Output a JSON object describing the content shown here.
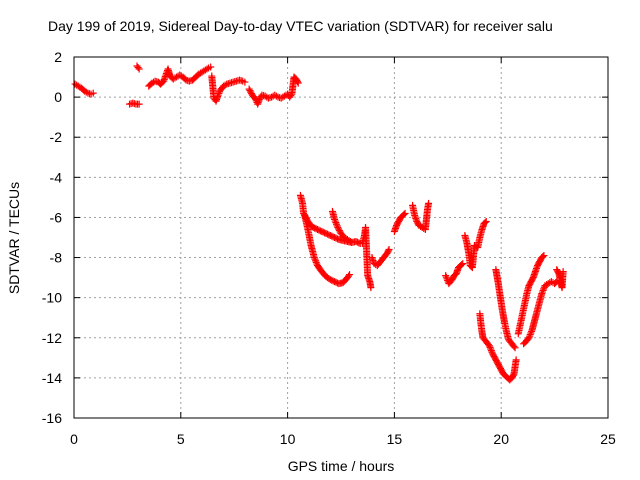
{
  "chart_data": {
    "type": "scatter",
    "title": "Day 199 of 2019, Sidereal Day-to-day VTEC variation (SDTVAR) for receiver salu",
    "xlabel": "GPS time / hours",
    "ylabel": "SDTVAR / TECUs",
    "xlim": [
      0,
      25
    ],
    "ylim": [
      -16,
      2
    ],
    "xticks": [
      "0",
      "5",
      "10",
      "15",
      "20",
      "25"
    ],
    "yticks": [
      "2",
      "0",
      "-2",
      "-4",
      "-6",
      "-8",
      "-10",
      "-12",
      "-14",
      "-16"
    ],
    "grid": true,
    "marker": "+",
    "color": "#ff0000",
    "segments": [
      [
        [
          0.05,
          0.65
        ],
        [
          0.2,
          0.55
        ],
        [
          0.35,
          0.45
        ],
        [
          0.5,
          0.3
        ],
        [
          0.65,
          0.2
        ],
        [
          0.8,
          0.15
        ],
        [
          0.9,
          0.2
        ]
      ],
      [
        [
          2.6,
          -0.35
        ],
        [
          2.75,
          -0.3
        ],
        [
          2.9,
          -0.35
        ],
        [
          3.05,
          -0.35
        ]
      ],
      [
        [
          2.95,
          1.55
        ],
        [
          3.05,
          1.4
        ]
      ],
      [
        [
          3.5,
          0.55
        ],
        [
          3.65,
          0.7
        ],
        [
          3.8,
          0.8
        ],
        [
          3.95,
          0.75
        ],
        [
          4.05,
          0.65
        ],
        [
          4.2,
          0.8
        ],
        [
          4.3,
          1.1
        ],
        [
          4.4,
          1.4
        ],
        [
          4.5,
          1.05
        ],
        [
          4.65,
          0.9
        ],
        [
          4.8,
          1.0
        ],
        [
          4.95,
          1.1
        ],
        [
          5.1,
          1.0
        ],
        [
          5.25,
          0.85
        ],
        [
          5.4,
          0.8
        ],
        [
          5.55,
          0.85
        ],
        [
          5.7,
          1.0
        ],
        [
          5.85,
          1.15
        ],
        [
          6.0,
          1.25
        ],
        [
          6.15,
          1.35
        ],
        [
          6.3,
          1.45
        ],
        [
          6.4,
          1.5
        ]
      ],
      [
        [
          6.45,
          1.05
        ],
        [
          6.55,
          -0.05
        ],
        [
          6.65,
          -0.2
        ],
        [
          6.75,
          0.1
        ],
        [
          6.85,
          0.35
        ],
        [
          7.0,
          0.55
        ],
        [
          7.15,
          0.65
        ],
        [
          7.3,
          0.7
        ],
        [
          7.45,
          0.75
        ],
        [
          7.6,
          0.8
        ],
        [
          7.75,
          0.85
        ],
        [
          7.9,
          0.8
        ],
        [
          8.0,
          0.75
        ]
      ],
      [
        [
          8.2,
          0.4
        ],
        [
          8.35,
          0.1
        ],
        [
          8.5,
          -0.1
        ],
        [
          8.6,
          -0.35
        ],
        [
          8.7,
          -0.05
        ],
        [
          8.8,
          0.1
        ],
        [
          8.95,
          0.05
        ],
        [
          9.1,
          -0.05
        ],
        [
          9.25,
          0.0
        ],
        [
          9.4,
          0.1
        ],
        [
          9.55,
          0.0
        ],
        [
          9.7,
          -0.05
        ],
        [
          9.85,
          0.05
        ],
        [
          10.0,
          0.15
        ],
        [
          10.1,
          0.0
        ],
        [
          10.2,
          0.15
        ],
        [
          10.3,
          1.0
        ],
        [
          10.4,
          0.9
        ],
        [
          10.5,
          0.7
        ]
      ],
      [
        [
          10.6,
          -4.9
        ],
        [
          10.7,
          -5.3
        ],
        [
          10.75,
          -5.8
        ],
        [
          10.85,
          -6.0
        ],
        [
          10.95,
          -6.2
        ],
        [
          11.05,
          -6.35
        ],
        [
          11.2,
          -6.5
        ],
        [
          11.4,
          -6.6
        ],
        [
          11.6,
          -6.7
        ],
        [
          11.8,
          -6.8
        ],
        [
          12.0,
          -6.9
        ],
        [
          12.2,
          -7.0
        ],
        [
          12.4,
          -7.1
        ],
        [
          12.6,
          -7.15
        ],
        [
          12.8,
          -7.2
        ],
        [
          13.0,
          -7.25
        ],
        [
          13.2,
          -7.2
        ],
        [
          13.4,
          -7.3
        ]
      ],
      [
        [
          10.8,
          -5.9
        ],
        [
          10.95,
          -6.6
        ],
        [
          11.1,
          -7.4
        ],
        [
          11.25,
          -8.0
        ],
        [
          11.4,
          -8.4
        ],
        [
          11.6,
          -8.7
        ],
        [
          11.8,
          -8.95
        ],
        [
          12.0,
          -9.1
        ],
        [
          12.2,
          -9.2
        ],
        [
          12.4,
          -9.3
        ],
        [
          12.6,
          -9.25
        ],
        [
          12.8,
          -9.0
        ],
        [
          12.9,
          -8.85
        ]
      ],
      [
        [
          12.1,
          -5.7
        ],
        [
          12.2,
          -6.1
        ],
        [
          12.35,
          -6.5
        ],
        [
          12.5,
          -6.8
        ],
        [
          12.65,
          -7.0
        ],
        [
          12.8,
          -7.1
        ],
        [
          12.95,
          -7.2
        ]
      ],
      [
        [
          13.5,
          -7.3
        ],
        [
          13.6,
          -6.9
        ],
        [
          13.65,
          -6.5
        ],
        [
          13.75,
          -8.9
        ],
        [
          13.85,
          -9.2
        ],
        [
          13.9,
          -9.5
        ]
      ],
      [
        [
          13.95,
          -8.0
        ],
        [
          14.05,
          -8.3
        ],
        [
          14.2,
          -8.4
        ],
        [
          14.35,
          -8.2
        ],
        [
          14.5,
          -8.0
        ],
        [
          14.65,
          -7.8
        ],
        [
          14.75,
          -7.6
        ]
      ],
      [
        [
          15.0,
          -6.7
        ],
        [
          15.1,
          -6.4
        ],
        [
          15.2,
          -6.2
        ],
        [
          15.3,
          -6.0
        ],
        [
          15.4,
          -5.9
        ],
        [
          15.5,
          -5.8
        ]
      ],
      [
        [
          15.85,
          -5.4
        ],
        [
          15.95,
          -5.9
        ],
        [
          16.05,
          -6.2
        ],
        [
          16.15,
          -6.4
        ],
        [
          16.3,
          -6.5
        ],
        [
          16.45,
          -6.6
        ],
        [
          16.55,
          -5.6
        ],
        [
          16.6,
          -5.3
        ]
      ],
      [
        [
          17.4,
          -8.9
        ],
        [
          17.55,
          -9.3
        ],
        [
          17.7,
          -9.1
        ],
        [
          17.8,
          -8.9
        ],
        [
          17.9,
          -8.8
        ],
        [
          18.0,
          -8.5
        ],
        [
          18.1,
          -8.4
        ],
        [
          18.2,
          -8.3
        ]
      ],
      [
        [
          18.3,
          -6.9
        ],
        [
          18.4,
          -7.3
        ],
        [
          18.5,
          -7.9
        ],
        [
          18.55,
          -8.4
        ],
        [
          18.65,
          -8.5
        ],
        [
          18.75,
          -7.4
        ],
        [
          18.9,
          -7.5
        ],
        [
          19.0,
          -7.0
        ],
        [
          19.1,
          -6.6
        ],
        [
          19.2,
          -6.3
        ],
        [
          19.3,
          -6.2
        ]
      ],
      [
        [
          19.0,
          -10.8
        ],
        [
          19.05,
          -11.3
        ],
        [
          19.1,
          -11.7
        ],
        [
          19.15,
          -12.0
        ],
        [
          19.3,
          -12.2
        ],
        [
          19.45,
          -12.4
        ],
        [
          19.6,
          -12.8
        ],
        [
          19.7,
          -13.0
        ],
        [
          19.8,
          -13.2
        ],
        [
          19.9,
          -13.4
        ],
        [
          20.0,
          -13.6
        ],
        [
          20.1,
          -13.8
        ],
        [
          20.2,
          -13.9
        ],
        [
          20.3,
          -14.0
        ],
        [
          20.4,
          -14.1
        ],
        [
          20.5,
          -14.0
        ],
        [
          20.6,
          -13.8
        ],
        [
          20.7,
          -13.1
        ]
      ],
      [
        [
          19.75,
          -8.6
        ],
        [
          19.85,
          -9.2
        ],
        [
          19.95,
          -9.9
        ],
        [
          20.05,
          -10.6
        ],
        [
          20.15,
          -11.2
        ],
        [
          20.25,
          -11.7
        ],
        [
          20.35,
          -12.1
        ],
        [
          20.5,
          -12.3
        ],
        [
          20.65,
          -12.5
        ]
      ],
      [
        [
          20.8,
          -11.8
        ],
        [
          20.9,
          -11.3
        ],
        [
          21.0,
          -10.8
        ],
        [
          21.1,
          -10.3
        ],
        [
          21.2,
          -9.8
        ],
        [
          21.3,
          -9.4
        ],
        [
          21.4,
          -9.2
        ],
        [
          21.5,
          -9.0
        ],
        [
          21.6,
          -8.7
        ],
        [
          21.7,
          -8.4
        ],
        [
          21.8,
          -8.2
        ],
        [
          21.9,
          -8.0
        ],
        [
          22.0,
          -7.9
        ]
      ],
      [
        [
          21.05,
          -12.3
        ],
        [
          21.15,
          -12.2
        ],
        [
          21.3,
          -12.0
        ],
        [
          21.45,
          -11.6
        ],
        [
          21.6,
          -11.0
        ],
        [
          21.75,
          -10.4
        ],
        [
          21.9,
          -9.8
        ],
        [
          22.05,
          -9.4
        ],
        [
          22.2,
          -9.3
        ],
        [
          22.35,
          -9.2
        ],
        [
          22.5,
          -9.3
        ],
        [
          22.6,
          -9.2
        ]
      ],
      [
        [
          22.6,
          -8.6
        ],
        [
          22.7,
          -8.8
        ],
        [
          22.75,
          -9.0
        ],
        [
          22.8,
          -9.3
        ],
        [
          22.85,
          -9.5
        ],
        [
          22.9,
          -8.7
        ]
      ]
    ]
  }
}
